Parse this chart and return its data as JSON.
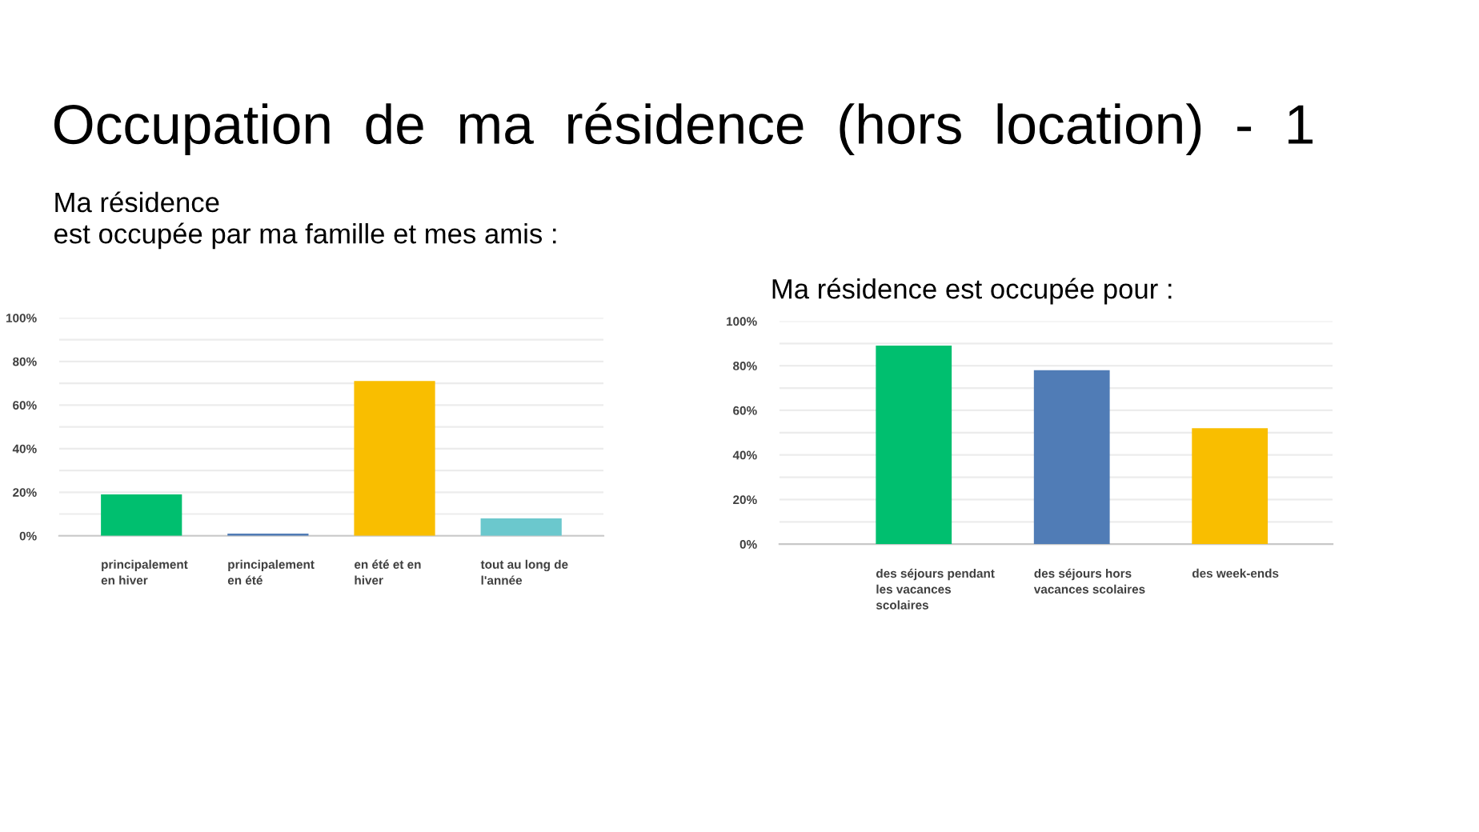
{
  "chart_data": [
    {
      "type": "bar",
      "title": "Occupation  de  ma  résidence  (hors  location)  -  1",
      "subtitle": "Ma résidence\nest occupée par ma famille et mes amis :",
      "categories": [
        "principalement\nen hiver",
        "principalement\nen été",
        "en été et en\nhiver",
        "tout au long de\nl'année"
      ],
      "values": [
        19,
        1,
        71,
        8
      ],
      "colors": [
        "#00bf6f",
        "#507cb6",
        "#f9be00",
        "#6bc8cd"
      ],
      "ylim": [
        0,
        100
      ],
      "yticks": [
        {
          "value": 0,
          "label": "0%"
        },
        {
          "value": 10,
          "label": null
        },
        {
          "value": 20,
          "label": "20%"
        },
        {
          "value": 30,
          "label": null
        },
        {
          "value": 40,
          "label": "40%"
        },
        {
          "value": 50,
          "label": null
        },
        {
          "value": 60,
          "label": "60%"
        },
        {
          "value": 70,
          "label": null
        },
        {
          "value": 80,
          "label": "80%"
        },
        {
          "value": 90,
          "label": null
        },
        {
          "value": 100,
          "label": "100%"
        }
      ],
      "grid": "y"
    },
    {
      "type": "bar",
      "subtitle": "Ma résidence est occupée pour :",
      "categories": [
        "des séjours pendant\nles vacances\nscolaires",
        "des séjours hors\nvacances scolaires",
        "des week-ends"
      ],
      "values": [
        89,
        78,
        52
      ],
      "colors": [
        "#00bf6f",
        "#507cb6",
        "#f9be00"
      ],
      "ylim": [
        0,
        100
      ],
      "yticks": [
        {
          "value": 0,
          "label": "0%"
        },
        {
          "value": 10,
          "label": null
        },
        {
          "value": 20,
          "label": "20%"
        },
        {
          "value": 30,
          "label": null
        },
        {
          "value": 40,
          "label": "40%"
        },
        {
          "value": 50,
          "label": null
        },
        {
          "value": 60,
          "label": "60%"
        },
        {
          "value": 70,
          "label": null
        },
        {
          "value": 80,
          "label": "80%"
        },
        {
          "value": 90,
          "label": null
        },
        {
          "value": 100,
          "label": "100%"
        }
      ],
      "grid": "y"
    }
  ]
}
